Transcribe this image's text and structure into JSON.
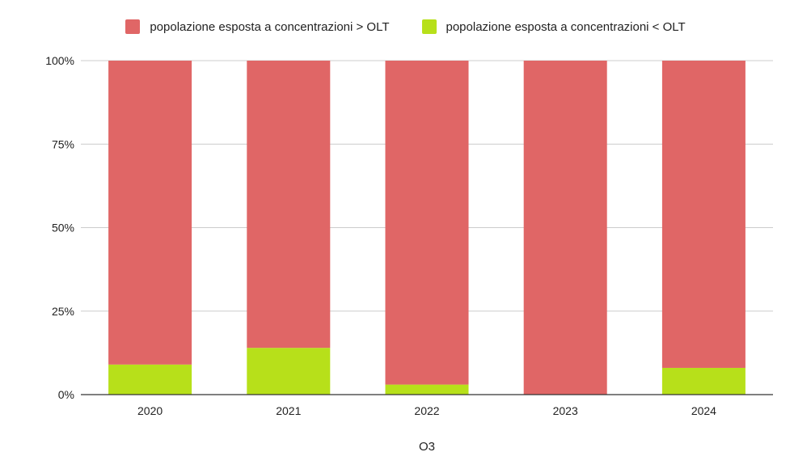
{
  "chart_data": {
    "type": "bar",
    "stacked": true,
    "percent": true,
    "categories": [
      "2020",
      "2021",
      "2022",
      "2023",
      "2024"
    ],
    "series": [
      {
        "name": "popolazione esposta a concentrazioni > OLT",
        "color": "#e06666",
        "values": [
          91,
          86,
          97,
          100,
          92
        ]
      },
      {
        "name": "popolazione esposta a concentrazioni < OLT",
        "color": "#b7e01a",
        "values": [
          9,
          14,
          3,
          0,
          8
        ]
      }
    ],
    "yticks": [
      "0%",
      "25%",
      "50%",
      "75%",
      "100%"
    ],
    "ylim": [
      0,
      100
    ],
    "xlabel": "O3",
    "grid": true,
    "legend_position": "top"
  }
}
